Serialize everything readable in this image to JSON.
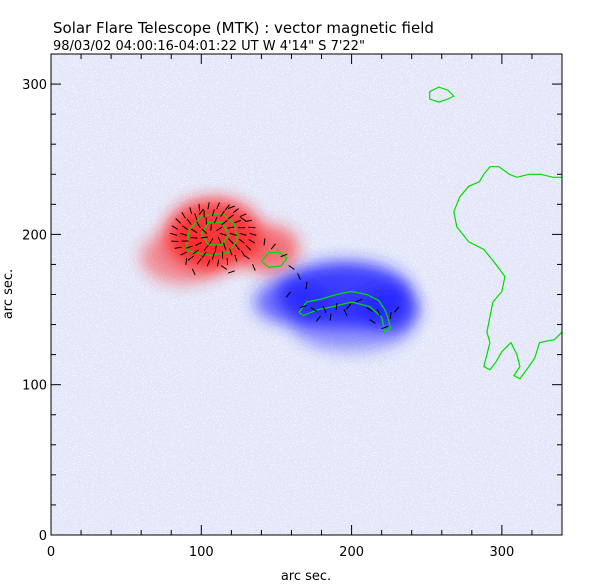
{
  "header": {
    "title": "Solar Flare Telescope (MTK) : vector magnetic field",
    "subtitle": "98/03/02  04:00:16-04:01:22 UT     W 4'14\"   S 7'22\""
  },
  "chart_data": {
    "type": "heatmap",
    "title": "Solar Flare Telescope (MTK) : vector magnetic field",
    "subtitle": "98/03/02  04:00:16-04:01:22 UT     W 4'14\"   S 7'22\"",
    "xlabel": "arc sec.",
    "ylabel": "arc sec.",
    "xlim": [
      0,
      340
    ],
    "ylim": [
      0,
      320
    ],
    "xticks": [
      0,
      100,
      200,
      300
    ],
    "yticks": [
      0,
      100,
      200,
      300
    ],
    "grid": false,
    "colors": {
      "positive_polarity": "#ff1e1e",
      "negative_polarity": "#2020ff",
      "contour": "#00dd00",
      "vectors": "#000000"
    },
    "regions": [
      {
        "polarity": "positive",
        "center": [
          108,
          200
        ],
        "radius": [
          32,
          24
        ],
        "intensity": 1.0
      },
      {
        "polarity": "positive",
        "center": [
          88,
          185
        ],
        "radius": [
          28,
          18
        ],
        "intensity": 0.55
      },
      {
        "polarity": "positive",
        "center": [
          145,
          190
        ],
        "radius": [
          20,
          16
        ],
        "intensity": 0.7
      },
      {
        "polarity": "negative",
        "center": [
          195,
          160
        ],
        "radius": [
          45,
          22
        ],
        "intensity": 1.0
      },
      {
        "polarity": "negative",
        "center": [
          225,
          150
        ],
        "radius": [
          20,
          14
        ],
        "intensity": 0.9
      },
      {
        "polarity": "negative",
        "center": [
          160,
          155
        ],
        "radius": [
          25,
          15
        ],
        "intensity": 0.7
      },
      {
        "polarity": "negative",
        "center": [
          200,
          140
        ],
        "radius": [
          40,
          18
        ],
        "intensity": 0.5
      }
    ],
    "contours": [
      {
        "points": [
          [
            100,
            200
          ],
          [
            105,
            208
          ],
          [
            114,
            208
          ],
          [
            118,
            200
          ],
          [
            114,
            193
          ],
          [
            105,
            193
          ],
          [
            100,
            200
          ]
        ]
      },
      {
        "points": [
          [
            90,
            190
          ],
          [
            92,
            203
          ],
          [
            100,
            212
          ],
          [
            114,
            214
          ],
          [
            122,
            207
          ],
          [
            124,
            196
          ],
          [
            118,
            188
          ],
          [
            106,
            186
          ],
          [
            95,
            188
          ],
          [
            90,
            190
          ]
        ]
      },
      {
        "points": [
          [
            140,
            182
          ],
          [
            145,
            188
          ],
          [
            152,
            188
          ],
          [
            157,
            184
          ],
          [
            153,
            179
          ],
          [
            145,
            178
          ],
          [
            140,
            182
          ]
        ]
      },
      {
        "points": [
          [
            165,
            148
          ],
          [
            170,
            155
          ],
          [
            180,
            157
          ],
          [
            190,
            160
          ],
          [
            200,
            162
          ],
          [
            210,
            160
          ],
          [
            218,
            156
          ],
          [
            222,
            150
          ],
          [
            224,
            145
          ],
          [
            226,
            138
          ],
          [
            222,
            135
          ],
          [
            220,
            145
          ],
          [
            212,
            152
          ],
          [
            200,
            155
          ],
          [
            188,
            152
          ],
          [
            178,
            150
          ],
          [
            168,
            146
          ],
          [
            165,
            148
          ]
        ]
      },
      {
        "points": [
          [
            340,
            135
          ],
          [
            335,
            130
          ],
          [
            325,
            128
          ],
          [
            322,
            118
          ],
          [
            318,
            112
          ],
          [
            315,
            108
          ],
          [
            312,
            104
          ],
          [
            308,
            106
          ],
          [
            312,
            112
          ],
          [
            310,
            120
          ],
          [
            306,
            128
          ],
          [
            300,
            122
          ],
          [
            296,
            115
          ],
          [
            292,
            110
          ],
          [
            288,
            112
          ],
          [
            290,
            120
          ],
          [
            292,
            128
          ],
          [
            290,
            135
          ],
          [
            292,
            145
          ],
          [
            294,
            155
          ],
          [
            300,
            162
          ],
          [
            302,
            172
          ],
          [
            296,
            180
          ],
          [
            288,
            190
          ],
          [
            278,
            195
          ],
          [
            270,
            205
          ],
          [
            268,
            215
          ],
          [
            272,
            225
          ],
          [
            278,
            232
          ],
          [
            285,
            235
          ],
          [
            288,
            240
          ],
          [
            292,
            245
          ],
          [
            298,
            245
          ],
          [
            305,
            240
          ],
          [
            310,
            238
          ],
          [
            318,
            240
          ],
          [
            326,
            240
          ],
          [
            334,
            238
          ],
          [
            340,
            238
          ]
        ]
      },
      {
        "points": [
          [
            252,
            290
          ],
          [
            258,
            288
          ],
          [
            264,
            290
          ],
          [
            268,
            292
          ],
          [
            264,
            296
          ],
          [
            258,
            298
          ],
          [
            252,
            295
          ],
          [
            252,
            290
          ]
        ]
      }
    ]
  }
}
